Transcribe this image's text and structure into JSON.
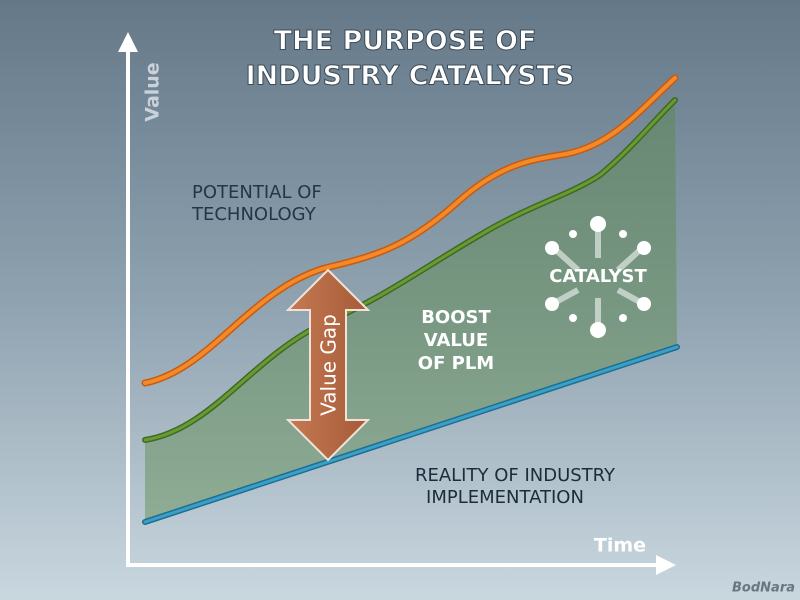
{
  "title": [
    "THE PURPOSE OF",
    "INDUSTRY CATALYSTS"
  ],
  "axes": {
    "y": "Value",
    "x": "Time"
  },
  "potential": [
    "POTENTIAL OF",
    "TECHNOLOGY"
  ],
  "gap": "Value Gap",
  "boost": [
    "BOOST",
    "VALUE",
    "OF PLM"
  ],
  "catalyst": "CATALYST",
  "reality": [
    "REALITY OF INDUSTRY",
    "IMPLEMENTATION"
  ],
  "watermark": "BodNara"
}
